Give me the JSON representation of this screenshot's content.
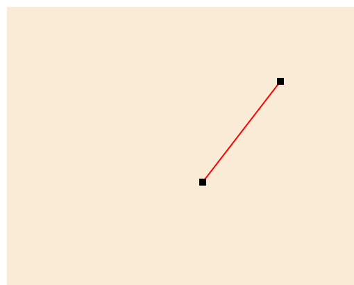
{
  "colors": {
    "canvas_background": "#FAEBD7",
    "segment_line": "#FF0000",
    "handle_fill": "#000000",
    "page_background": "#FFFFFF"
  },
  "segment": {
    "shape": "line",
    "handles": [
      "start-point-handle",
      "end-point-handle"
    ]
  }
}
